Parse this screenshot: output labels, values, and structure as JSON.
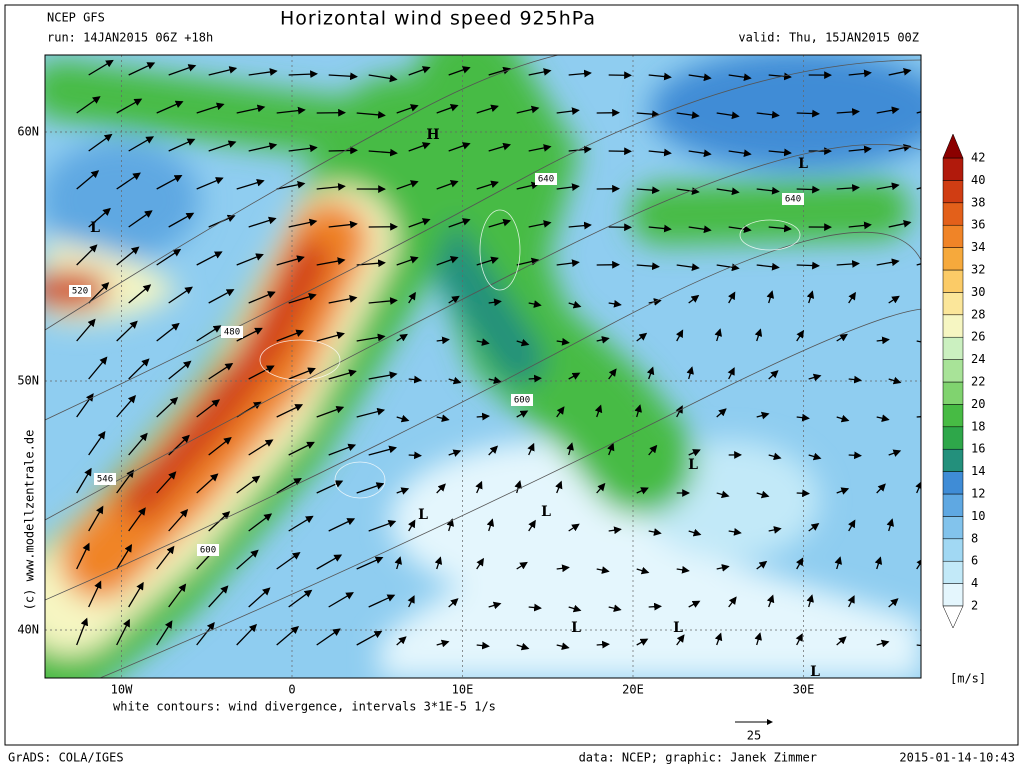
{
  "header": {
    "model": "NCEP GFS",
    "title": "Horizontal wind speed 925hPa",
    "run": "run: 14JAN2015 06Z +18h",
    "valid": "valid: Thu, 15JAN2015 00Z"
  },
  "map": {
    "lat_ticks": [
      {
        "value": 60,
        "label": "60N"
      },
      {
        "value": 50,
        "label": "50N"
      },
      {
        "value": 40,
        "label": "40N"
      }
    ],
    "lon_ticks": [
      {
        "value": -10,
        "label": "10W"
      },
      0,
      {
        "value": 10,
        "label": "10E"
      },
      {
        "value": 20,
        "label": "20E"
      },
      {
        "value": 30,
        "label": "30E"
      }
    ],
    "pressure_labels": [
      "H",
      "L",
      "L",
      "L",
      "L",
      "L",
      "L",
      "L",
      "L"
    ],
    "contour_labels": [
      "640",
      "640",
      "520",
      "480",
      "546",
      "600",
      "600"
    ],
    "side_credit": "(c) www.modellzentrale.de"
  },
  "colorbar": {
    "levels": [
      2,
      4,
      6,
      8,
      10,
      12,
      14,
      16,
      18,
      20,
      22,
      24,
      26,
      28,
      30,
      32,
      34,
      36,
      38,
      40,
      42
    ],
    "colors": [
      "#e4f6fd",
      "#c2e9f8",
      "#a1d8f3",
      "#82c3ec",
      "#5fa8e2",
      "#3f8cd6",
      "#23907c",
      "#2ea74a",
      "#47bb44",
      "#80d36f",
      "#a8e398",
      "#cbf0c0",
      "#f6f6c2",
      "#fbe69a",
      "#fbcb67",
      "#f6a93c",
      "#f08427",
      "#e3601a",
      "#d03d13",
      "#b11a0c"
    ],
    "over_color": "#8b0000",
    "under_color": "#ffffff",
    "unit": "[m/s]"
  },
  "footer": {
    "note": "white contours: wind divergence, intervals 3*1E-5 1/s",
    "reference_vector": 25,
    "software": "GrADS: COLA/IGES",
    "credit": "data: NCEP; graphic: Janek Zimmer",
    "timestamp": "2015-01-14-10:43"
  }
}
